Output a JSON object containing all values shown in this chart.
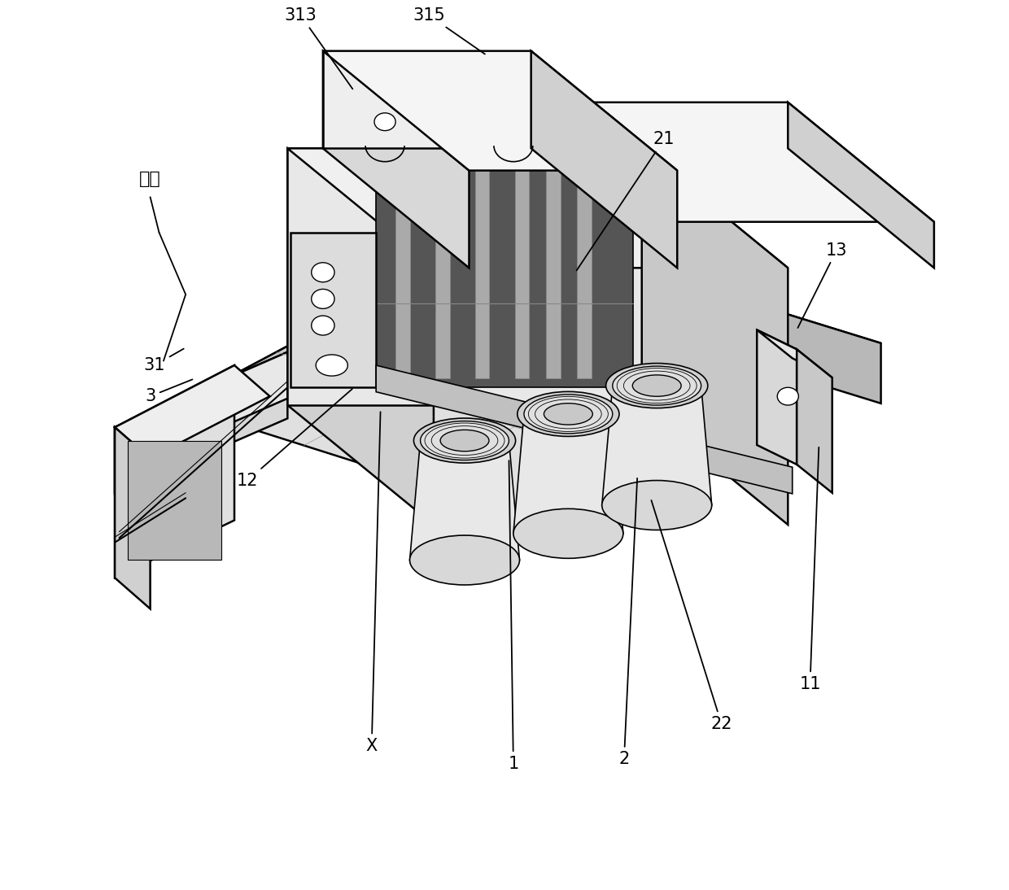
{
  "background_color": "#ffffff",
  "line_color": "#000000",
  "line_width": 1.8,
  "figsize": [
    12.4,
    10.94
  ],
  "dpi": 100
}
